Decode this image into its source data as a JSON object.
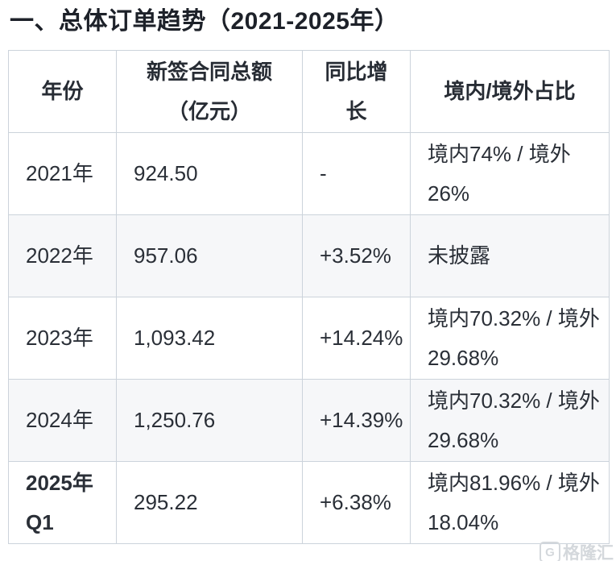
{
  "section": {
    "title": "一、总体订单趋势（2021-2025年）"
  },
  "table": {
    "columns": [
      {
        "label": "年份"
      },
      {
        "label": "新签合同总额\n（亿元）"
      },
      {
        "label": "同比增\n长"
      },
      {
        "label": "境内/境外占比"
      }
    ],
    "rows": [
      {
        "year": "2021年",
        "amount": "924.50",
        "growth": "-",
        "ratio": "境内74% / 境外\n26%"
      },
      {
        "year": "2022年",
        "amount": "957.06",
        "growth": "+3.52%",
        "ratio": "未披露"
      },
      {
        "year": "2023年",
        "amount": "1,093.42",
        "growth": "+14.24%",
        "ratio": "境内70.32% / 境外\n29.68%"
      },
      {
        "year": "2024年",
        "amount": "1,250.76",
        "growth": "+14.39%",
        "ratio": "境内70.32% / 境外\n29.68%"
      },
      {
        "year": "2025年\nQ1",
        "amount": "295.22",
        "growth": "+6.38%",
        "ratio": "境内81.96% / 境外\n18.04%"
      }
    ]
  },
  "watermark": {
    "logo": "G",
    "text": "格隆汇"
  },
  "colors": {
    "title_text": "#1d2129",
    "body_text": "#2a2f37",
    "border": "#ccd3db",
    "stripe_row_bg": "#f6f7f9",
    "watermark": "#d4d8dc"
  },
  "chart_data": {
    "type": "table",
    "title": "一、总体订单趋势（2021-2025年）",
    "columns": [
      "年份",
      "新签合同总额（亿元）",
      "同比增长",
      "境内/境外占比"
    ],
    "rows": [
      [
        "2021年",
        924.5,
        "-",
        "境内74% / 境外26%"
      ],
      [
        "2022年",
        957.06,
        "+3.52%",
        "未披露"
      ],
      [
        "2023年",
        1093.42,
        "+14.24%",
        "境内70.32% / 境外29.68%"
      ],
      [
        "2024年",
        1250.76,
        "+14.39%",
        "境内70.32% / 境外29.68%"
      ],
      [
        "2025年Q1",
        295.22,
        "+6.38%",
        "境内81.96% / 境外18.04%"
      ]
    ]
  }
}
